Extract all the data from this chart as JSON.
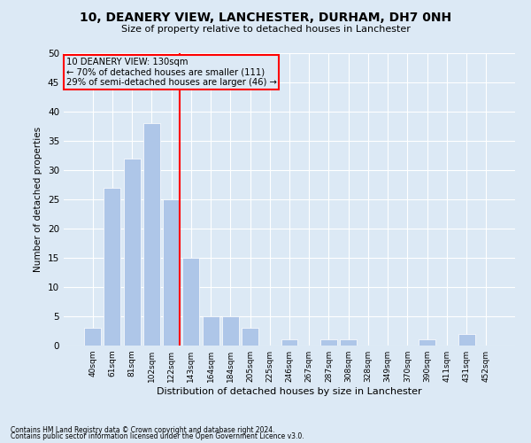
{
  "title": "10, DEANERY VIEW, LANCHESTER, DURHAM, DH7 0NH",
  "subtitle": "Size of property relative to detached houses in Lanchester",
  "xlabel": "Distribution of detached houses by size in Lanchester",
  "ylabel": "Number of detached properties",
  "categories": [
    "40sqm",
    "61sqm",
    "81sqm",
    "102sqm",
    "122sqm",
    "143sqm",
    "164sqm",
    "184sqm",
    "205sqm",
    "225sqm",
    "246sqm",
    "267sqm",
    "287sqm",
    "308sqm",
    "328sqm",
    "349sqm",
    "370sqm",
    "390sqm",
    "411sqm",
    "431sqm",
    "452sqm"
  ],
  "values": [
    3,
    27,
    32,
    38,
    25,
    15,
    5,
    5,
    3,
    0,
    1,
    0,
    1,
    1,
    0,
    0,
    0,
    1,
    0,
    2,
    0
  ],
  "bar_color": "#aec6e8",
  "red_line_index": 4,
  "annotation_title": "10 DEANERY VIEW: 130sqm",
  "annotation_line1": "← 70% of detached houses are smaller (111)",
  "annotation_line2": "29% of semi-detached houses are larger (46) →",
  "ylim": [
    0,
    50
  ],
  "yticks": [
    0,
    5,
    10,
    15,
    20,
    25,
    30,
    35,
    40,
    45,
    50
  ],
  "background_color": "#dce9f5",
  "footnote1": "Contains HM Land Registry data © Crown copyright and database right 2024.",
  "footnote2": "Contains public sector information licensed under the Open Government Licence v3.0."
}
